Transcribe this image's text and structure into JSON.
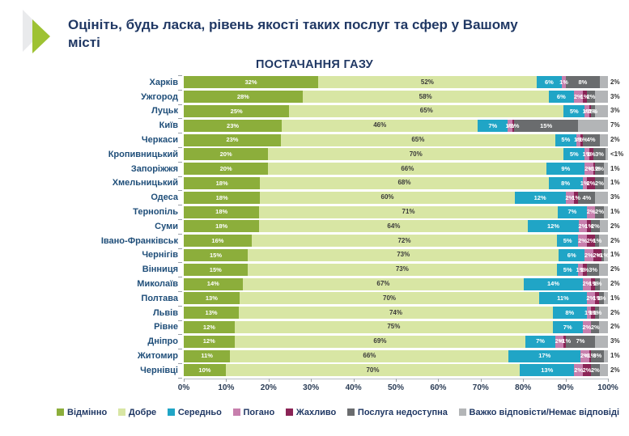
{
  "header": {
    "title": "Оцініть, будь ласка, рівень якості таких послуг та сфер у Вашому місті"
  },
  "chart_data": {
    "type": "bar",
    "orientation": "horizontal",
    "stacked": true,
    "title": "ПОСТАЧАННЯ ГАЗУ",
    "xlim": [
      0,
      100
    ],
    "x_ticks": [
      "0%",
      "10%",
      "20%",
      "30%",
      "40%",
      "50%",
      "60%",
      "70%",
      "80%",
      "90%",
      "100%"
    ],
    "legend_position": "bottom",
    "series": [
      {
        "name": "Відмінно",
        "color": "#8cae3b"
      },
      {
        "name": "Добре",
        "color": "#d8e6a4"
      },
      {
        "name": "Середньо",
        "color": "#20a5c6"
      },
      {
        "name": "Погано",
        "color": "#c77fad"
      },
      {
        "name": "Жахливо",
        "color": "#8b2456"
      },
      {
        "name": "Послуга недоступна",
        "color": "#6a6c6e"
      },
      {
        "name": "Важко відповісти/Немає відповіді",
        "color": "#b3b5b7"
      }
    ],
    "rows": [
      {
        "city": "Харків",
        "values": [
          32,
          52,
          6,
          1,
          0,
          8,
          2
        ],
        "labels": [
          "32%",
          "52%",
          "6%",
          "1%",
          "",
          "8%",
          "2%"
        ]
      },
      {
        "city": "Ужгород",
        "values": [
          28,
          58,
          6,
          2,
          1,
          2,
          3
        ],
        "labels": [
          "28%",
          "58%",
          "6%",
          "2%",
          "1%",
          "2%",
          "3%"
        ]
      },
      {
        "city": "Луцьк",
        "values": [
          25,
          65,
          5,
          1,
          0.5,
          1,
          3
        ],
        "labels": [
          "25%",
          "65%",
          "5%",
          "1%",
          "<1%",
          "1%",
          "3%"
        ]
      },
      {
        "city": "Київ",
        "values": [
          23,
          46,
          7,
          1,
          0.5,
          15,
          7
        ],
        "labels": [
          "23%",
          "46%",
          "7%",
          "1%",
          "<1%",
          "15%",
          "7%"
        ]
      },
      {
        "city": "Черкаси",
        "values": [
          23,
          65,
          5,
          1,
          0.5,
          4,
          2
        ],
        "labels": [
          "23%",
          "65%",
          "5%",
          "1%",
          "<1%",
          "4%",
          "2%"
        ]
      },
      {
        "city": "Кропивницький",
        "values": [
          20,
          70,
          5,
          1,
          1,
          3,
          0.5
        ],
        "labels": [
          "20%",
          "70%",
          "5%",
          "1%",
          "1%",
          "3%",
          "<1%"
        ]
      },
      {
        "city": "Запоріжжя",
        "values": [
          20,
          66,
          9,
          2,
          0.5,
          2,
          1
        ],
        "labels": [
          "20%",
          "66%",
          "9%",
          "2%",
          "<1%",
          "2%",
          "1%"
        ]
      },
      {
        "city": "Хмельницький",
        "values": [
          18,
          68,
          8,
          1,
          2,
          2,
          1
        ],
        "labels": [
          "18%",
          "68%",
          "8%",
          "1%",
          "2%",
          "2%",
          "1%"
        ]
      },
      {
        "city": "Одеса",
        "values": [
          18,
          60,
          12,
          2,
          1,
          4,
          3
        ],
        "labels": [
          "18%",
          "60%",
          "12%",
          "2%",
          "1%",
          "4%",
          "3%"
        ]
      },
      {
        "city": "Тернопіль",
        "values": [
          18,
          71,
          7,
          2,
          0,
          2,
          1
        ],
        "labels": [
          "18%",
          "71%",
          "7%",
          "2%",
          "",
          "2%",
          "1%"
        ]
      },
      {
        "city": "Суми",
        "values": [
          18,
          64,
          12,
          2,
          1,
          2,
          2
        ],
        "labels": [
          "18%",
          "64%",
          "12%",
          "2%",
          "1%",
          "2%",
          "2%"
        ]
      },
      {
        "city": "Івано-Франківськ",
        "values": [
          16,
          72,
          5,
          2,
          2,
          1,
          2
        ],
        "labels": [
          "16%",
          "72%",
          "5%",
          "2%",
          "2%",
          "1%",
          "2%"
        ]
      },
      {
        "city": "Чернігів",
        "values": [
          15,
          73,
          6,
          2,
          2,
          0.5,
          1
        ],
        "labels": [
          "15%",
          "73%",
          "6%",
          "2%",
          "2%",
          "<1%",
          "1%"
        ]
      },
      {
        "city": "Вінниця",
        "values": [
          15,
          73,
          5,
          1,
          1,
          3,
          2
        ],
        "labels": [
          "15%",
          "73%",
          "5%",
          "1%",
          "1%",
          "3%",
          "2%"
        ]
      },
      {
        "city": "Миколаїв",
        "values": [
          14,
          67,
          14,
          2,
          1,
          1,
          2
        ],
        "labels": [
          "14%",
          "67%",
          "14%",
          "2%",
          "1%",
          "1%",
          "2%"
        ]
      },
      {
        "city": "Полтава",
        "values": [
          13,
          70,
          11,
          2,
          1,
          1,
          1
        ],
        "labels": [
          "13%",
          "70%",
          "11%",
          "2%",
          "1%",
          "1%",
          "1%"
        ]
      },
      {
        "city": "Львів",
        "values": [
          13,
          74,
          8,
          1,
          1,
          1,
          2
        ],
        "labels": [
          "13%",
          "74%",
          "8%",
          "1%",
          "1%",
          "1%",
          "2%"
        ]
      },
      {
        "city": "Рівне",
        "values": [
          12,
          75,
          7,
          2,
          0,
          2,
          2
        ],
        "labels": [
          "12%",
          "75%",
          "7%",
          "2%",
          "",
          "2%",
          "2%"
        ]
      },
      {
        "city": "Дніпро",
        "values": [
          12,
          69,
          7,
          2,
          0.5,
          7,
          3
        ],
        "labels": [
          "12%",
          "69%",
          "7%",
          "2%",
          "<1%",
          "7%",
          "3%"
        ]
      },
      {
        "city": "Житомир",
        "values": [
          11,
          66,
          17,
          2,
          0.5,
          3,
          1
        ],
        "labels": [
          "11%",
          "66%",
          "17%",
          "2%",
          "<1%",
          "3%",
          "1%"
        ]
      },
      {
        "city": "Чернівці",
        "values": [
          10,
          70,
          13,
          2,
          2,
          2,
          2
        ],
        "labels": [
          "10%",
          "70%",
          "13%",
          "2%",
          "2%",
          "2%",
          "2%"
        ]
      }
    ]
  }
}
